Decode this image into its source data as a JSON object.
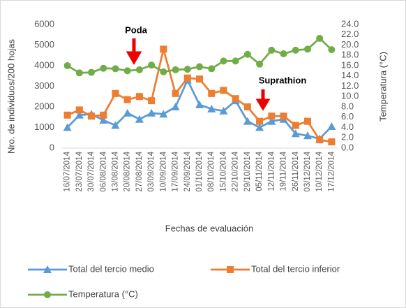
{
  "chart_data": {
    "type": "line",
    "categories": [
      "16/07/2014",
      "23/07/2014",
      "30/07/2014",
      "06/08/2014",
      "13/08/2014",
      "20/08/2014",
      "27/08/2014",
      "03/09/2014",
      "10/09/2014",
      "17/09/2014",
      "24/09/2014",
      "01/10/2014",
      "08/10/2014",
      "15/10/2014",
      "22/10/2014",
      "29/10/2014",
      "05/11/2014",
      "12/11/2014",
      "19/11/2014",
      "26/11/2014",
      "03/12/2014",
      "10/12/2014",
      "17/12/2014"
    ],
    "series": [
      {
        "name": "Total del tercio medio",
        "color": "#5b9bd5",
        "marker": "triangle",
        "values": [
          1000,
          1600,
          1650,
          1350,
          1100,
          1700,
          1400,
          1700,
          1650,
          2000,
          3300,
          2100,
          1900,
          1800,
          2300,
          1300,
          1000,
          1300,
          1400,
          700,
          600,
          450,
          1050
        ]
      },
      {
        "name": "Total del tercio inferior",
        "color": "#ed7d31",
        "marker": "square",
        "values": [
          1600,
          1850,
          1550,
          1600,
          2650,
          2350,
          2500,
          2300,
          4800,
          2650,
          3400,
          3350,
          2650,
          2800,
          2400,
          2000,
          1300,
          1550,
          1550,
          1100,
          1300,
          400,
          300
        ]
      },
      {
        "name": "Temperatura (°C)",
        "color": "#70ad47",
        "marker": "circle",
        "axis": "y2",
        "values": [
          16.0,
          14.6,
          14.7,
          15.5,
          15.4,
          15.0,
          15.2,
          16.1,
          14.8,
          15.2,
          15.3,
          15.8,
          15.4,
          16.9,
          16.9,
          18.2,
          16.3,
          19.0,
          18.3,
          19.0,
          19.2,
          21.3,
          19.1
        ]
      }
    ],
    "ylabel": "Nro. de individuos/200 hojas",
    "y2label": "Temperatura (°C)",
    "xlabel": "Fechas de evaluación",
    "ylim": [
      0,
      6000
    ],
    "yticks": [
      0,
      1000,
      2000,
      3000,
      4000,
      5000,
      6000
    ],
    "y2lim": [
      0,
      24
    ],
    "y2ticks": [
      {
        "value": 0,
        "label": "0.0"
      },
      {
        "value": 2,
        "label": "2.0"
      },
      {
        "value": 4,
        "label": "4.0"
      },
      {
        "value": 6,
        "label": "6.0"
      },
      {
        "value": 8,
        "label": "8.0"
      },
      {
        "value": 10,
        "label": "10.0"
      },
      {
        "value": 12,
        "label": "12.0"
      },
      {
        "value": 14,
        "label": "14.0"
      },
      {
        "value": 16,
        "label": "16.0"
      },
      {
        "value": 18,
        "label": "18.0"
      },
      {
        "value": 20,
        "label": "20.0"
      },
      {
        "value": 22,
        "label": "22.0"
      },
      {
        "value": 24,
        "label": "24.0"
      }
    ],
    "annotations": [
      "Poda",
      "Suprathion"
    ],
    "grid": false,
    "legend": "bottom"
  }
}
